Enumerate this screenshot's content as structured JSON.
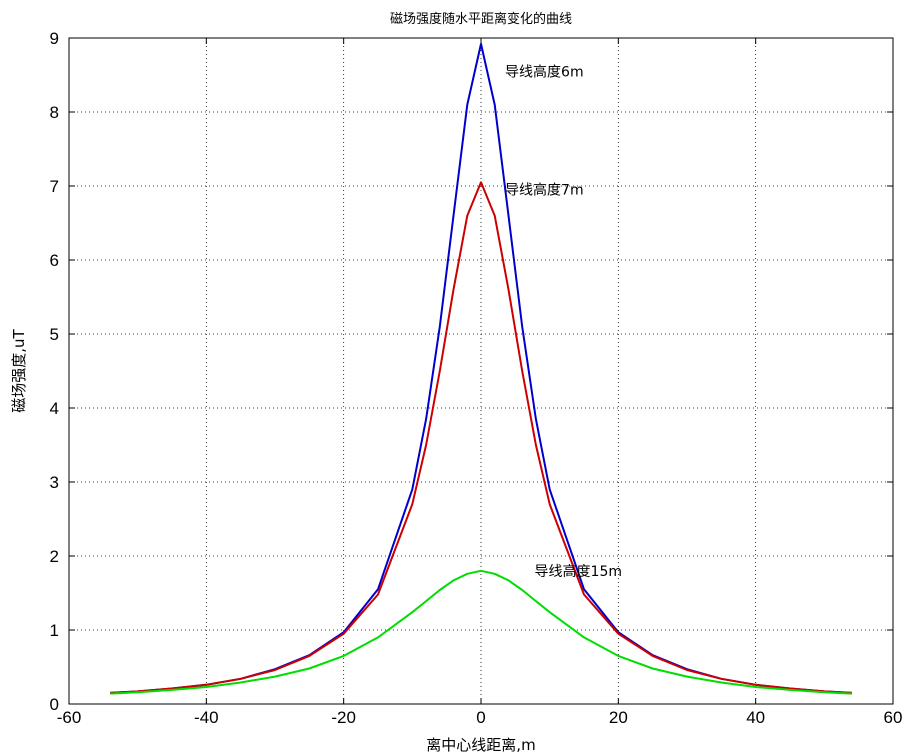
{
  "chart_data": {
    "type": "line",
    "title": "磁场强度随水平距离变化的曲线",
    "xlabel": "离中心线距离,m",
    "ylabel": "磁场强度,uT",
    "xlim": [
      -60,
      60
    ],
    "ylim": [
      0,
      9
    ],
    "xticks": [
      -60,
      -40,
      -20,
      0,
      20,
      40,
      60
    ],
    "yticks": [
      0,
      1,
      2,
      3,
      4,
      5,
      6,
      7,
      8,
      9
    ],
    "grid": true,
    "x": [
      -54,
      -50,
      -45,
      -40,
      -35,
      -30,
      -25,
      -20,
      -15,
      -10,
      -8,
      -6,
      -4,
      -2,
      0,
      2,
      4,
      6,
      8,
      10,
      15,
      20,
      25,
      30,
      35,
      40,
      45,
      50,
      54
    ],
    "series": [
      {
        "name": "",
        "color": "#0000cc",
        "values": [
          0.15,
          0.17,
          0.21,
          0.26,
          0.34,
          0.47,
          0.66,
          0.97,
          1.55,
          2.9,
          3.85,
          5.1,
          6.6,
          8.1,
          8.92,
          8.1,
          6.6,
          5.1,
          3.85,
          2.9,
          1.55,
          0.97,
          0.66,
          0.47,
          0.34,
          0.26,
          0.21,
          0.17,
          0.15
        ]
      },
      {
        "name": "",
        "color": "#cc0000",
        "values": [
          0.15,
          0.17,
          0.21,
          0.26,
          0.34,
          0.46,
          0.65,
          0.95,
          1.48,
          2.7,
          3.5,
          4.5,
          5.6,
          6.6,
          7.05,
          6.6,
          5.6,
          4.5,
          3.5,
          2.7,
          1.48,
          0.95,
          0.65,
          0.46,
          0.34,
          0.26,
          0.21,
          0.17,
          0.15
        ]
      },
      {
        "name": "",
        "color": "#00dd00",
        "values": [
          0.14,
          0.16,
          0.19,
          0.23,
          0.29,
          0.37,
          0.48,
          0.65,
          0.9,
          1.24,
          1.39,
          1.54,
          1.67,
          1.76,
          1.8,
          1.76,
          1.67,
          1.54,
          1.39,
          1.24,
          0.9,
          0.65,
          0.48,
          0.37,
          0.29,
          0.23,
          0.19,
          0.16,
          0.14
        ]
      }
    ],
    "annotations": [
      {
        "text": "导线高度6m",
        "x": 3.5,
        "y": 8.55
      },
      {
        "text": "导线高度7m",
        "x": 3.5,
        "y": 6.95
      },
      {
        "text": "导线高度15m",
        "x": 7.8,
        "y": 1.8
      }
    ]
  }
}
